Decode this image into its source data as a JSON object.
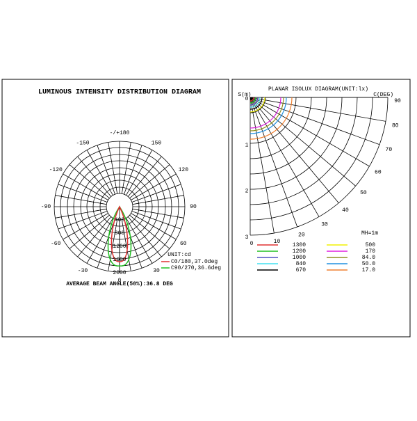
{
  "luminous": {
    "title": "LUMINOUS INTENSITY DISTRIBUTION DIAGRAM",
    "angle_labels": [
      "-/+180",
      "150",
      "120",
      "90",
      "60",
      "30",
      "0",
      "-30",
      "-60",
      "-90",
      "-120",
      "-150"
    ],
    "radial_labels": [
      "400",
      "800",
      "1200",
      "1600",
      "2000"
    ],
    "unit": "UNIT:cd",
    "curves": [
      {
        "label": "C0/180,37.0deg",
        "color": "#e03030"
      },
      {
        "label": "C90/270,36.6deg",
        "color": "#20c020"
      }
    ],
    "beam_angle": "AVERAGE BEAM ANGLE(50%):36.8 DEG"
  },
  "isolux": {
    "title": "PLANAR ISOLUX DIAGRAM(UNIT:lx)",
    "y_axis_label": "S(m)",
    "angle_axis_label": "C(DEG)",
    "distance_labels": [
      "0",
      "1",
      "2",
      "3"
    ],
    "angle_labels": [
      "0",
      "10",
      "20",
      "30",
      "40",
      "50",
      "60",
      "70",
      "80",
      "90"
    ],
    "mounting_height": "MH=1m",
    "legend": [
      {
        "value": "1300",
        "color": "#e03030"
      },
      {
        "value": "1200",
        "color": "#20c020"
      },
      {
        "value": "1000",
        "color": "#5050c0"
      },
      {
        "value": "840",
        "color": "#40e0f0"
      },
      {
        "value": "670",
        "color": "#000000"
      },
      {
        "value": "500",
        "color": "#f0f000"
      },
      {
        "value": "170",
        "color": "#e020e0"
      },
      {
        "value": "84.0",
        "color": "#909020"
      },
      {
        "value": "50.0",
        "color": "#2090e0"
      },
      {
        "value": "17.0",
        "color": "#f08030"
      }
    ]
  }
}
